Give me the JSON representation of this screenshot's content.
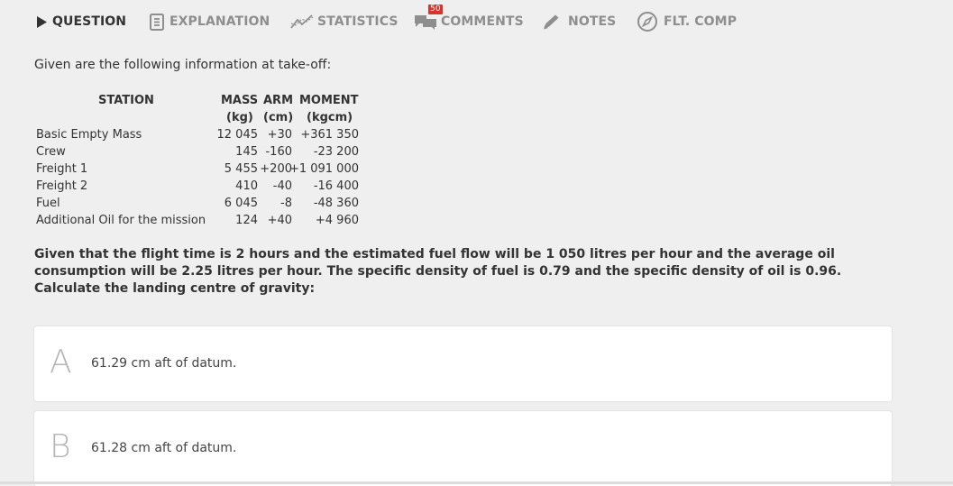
{
  "tabs": {
    "question": "QUESTION",
    "explanation": "EXPLANATION",
    "statistics": "STATISTICS",
    "comments": "COMMENTS",
    "comments_badge": "50",
    "notes": "NOTES",
    "flt_comp": "FLT. COMP"
  },
  "intro": "Given are the following information at take-off:",
  "table": {
    "headers": {
      "station": "STATION",
      "mass": "MASS",
      "arm": "ARM",
      "moment": "MOMENT",
      "mass_unit": "(kg)",
      "arm_unit": "(cm)",
      "moment_unit": "(kgcm)"
    },
    "rows": [
      {
        "station": "Basic Empty Mass",
        "mass": "12 045",
        "arm": "+30",
        "moment": "+361 350"
      },
      {
        "station": "Crew",
        "mass": "145",
        "arm": "-160",
        "moment": "-23 200"
      },
      {
        "station": "Freight 1",
        "mass": "5 455",
        "arm": "+200",
        "moment": "+1 091 000"
      },
      {
        "station": "Freight 2",
        "mass": "410",
        "arm": "-40",
        "moment": "-16 400"
      },
      {
        "station": "Fuel",
        "mass": "6 045",
        "arm": "-8",
        "moment": "-48 360"
      },
      {
        "station": "Additional Oil for the mission",
        "mass": "124",
        "arm": "+40",
        "moment": "+4 960"
      }
    ]
  },
  "question": "Given that the flight time is 2 hours and the estimated fuel flow will be 1 050 litres per hour and the average oil consumption will be 2.25 litres per hour. The specific density of fuel is 0.79 and the specific density of oil is 0.96. Calculate the landing centre of gravity:",
  "answers": [
    {
      "letter": "A",
      "text": "61.29 cm aft of datum."
    },
    {
      "letter": "B",
      "text": "61.28 cm aft of datum."
    }
  ]
}
